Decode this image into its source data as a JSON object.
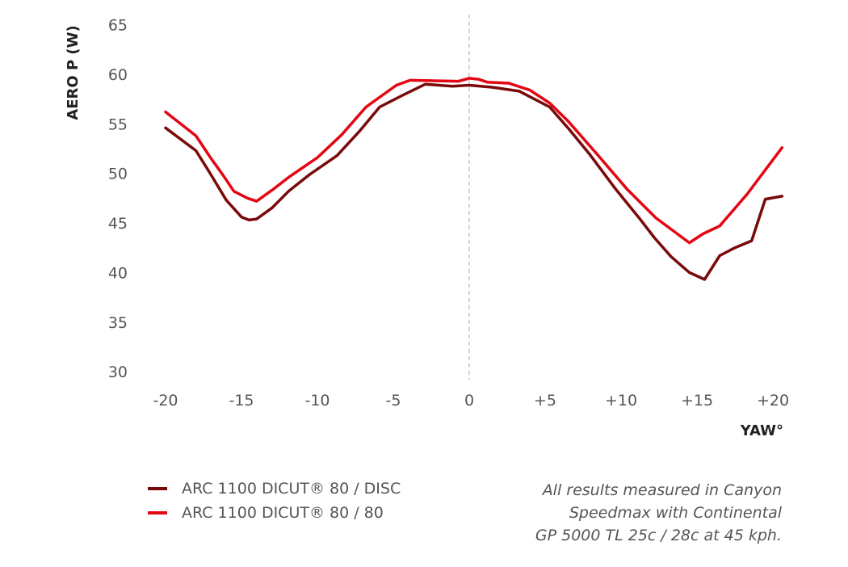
{
  "chart_data": {
    "type": "line",
    "ylabel": "AERO P (W)",
    "xlabel": "YAW°",
    "ylim": [
      30,
      65
    ],
    "xlim": [
      -20,
      20
    ],
    "yticks": [
      "30",
      "35",
      "40",
      "45",
      "50",
      "55",
      "60",
      "65"
    ],
    "xticks": [
      "-20",
      "-15",
      "-10",
      "-5",
      "0",
      "+5",
      "+10",
      "+15",
      "+20"
    ],
    "grid": false,
    "reference_line": {
      "x": 0,
      "style": "dashed"
    },
    "legend_position": "bottom-left",
    "series": [
      {
        "name": "ARC 1100 DICUT® 80 / DISC",
        "color": "#7a0a0a",
        "points": [
          [
            -20,
            54.6
          ],
          [
            -18,
            52.3
          ],
          [
            -17.1,
            50.1
          ],
          [
            -16,
            47.3
          ],
          [
            -15,
            45.6
          ],
          [
            -14.5,
            45.3
          ],
          [
            -14,
            45.4
          ],
          [
            -13,
            46.5
          ],
          [
            -11.9,
            48.2
          ],
          [
            -10.5,
            49.9
          ],
          [
            -8.7,
            51.8
          ],
          [
            -7.2,
            54.3
          ],
          [
            -5.9,
            56.7
          ],
          [
            -4.5,
            57.8
          ],
          [
            -2.9,
            59.0
          ],
          [
            -1.1,
            58.8
          ],
          [
            0,
            58.9
          ],
          [
            1.5,
            58.7
          ],
          [
            3.3,
            58.3
          ],
          [
            5.3,
            56.7
          ],
          [
            6.5,
            54.6
          ],
          [
            7.9,
            52.0
          ],
          [
            9.6,
            48.5
          ],
          [
            11.3,
            45.3
          ],
          [
            12.2,
            43.5
          ],
          [
            13.3,
            41.6
          ],
          [
            14.5,
            40.0
          ],
          [
            15.5,
            39.3
          ],
          [
            16.5,
            41.7
          ],
          [
            17.5,
            42.5
          ],
          [
            18.6,
            43.2
          ],
          [
            19.5,
            47.4
          ],
          [
            20.6,
            47.7
          ]
        ]
      },
      {
        "name": "ARC 1100 DICUT® 80 / 80",
        "color": "#e30613",
        "points": [
          [
            -20,
            56.2
          ],
          [
            -18,
            53.8
          ],
          [
            -17,
            51.5
          ],
          [
            -16.2,
            49.8
          ],
          [
            -15.5,
            48.2
          ],
          [
            -14.6,
            47.5
          ],
          [
            -14,
            47.2
          ],
          [
            -13,
            48.3
          ],
          [
            -11.9,
            49.6
          ],
          [
            -10,
            51.6
          ],
          [
            -8.4,
            53.9
          ],
          [
            -6.8,
            56.7
          ],
          [
            -5.8,
            57.8
          ],
          [
            -4.8,
            58.9
          ],
          [
            -3.9,
            59.4
          ],
          [
            -0.7,
            59.3
          ],
          [
            0,
            59.6
          ],
          [
            0.6,
            59.5
          ],
          [
            1.2,
            59.2
          ],
          [
            2.6,
            59.1
          ],
          [
            4,
            58.4
          ],
          [
            5.3,
            57.1
          ],
          [
            6.5,
            55.3
          ],
          [
            8.5,
            51.8
          ],
          [
            10.4,
            48.4
          ],
          [
            12.3,
            45.5
          ],
          [
            14.5,
            43.0
          ],
          [
            15.4,
            43.9
          ],
          [
            16.5,
            44.7
          ],
          [
            18.3,
            47.9
          ],
          [
            20.6,
            52.6
          ]
        ]
      }
    ]
  },
  "footnote": [
    "All results measured in Canyon",
    "Speedmax with Continental",
    "GP 5000 TL 25c / 28c at 45 kph."
  ]
}
